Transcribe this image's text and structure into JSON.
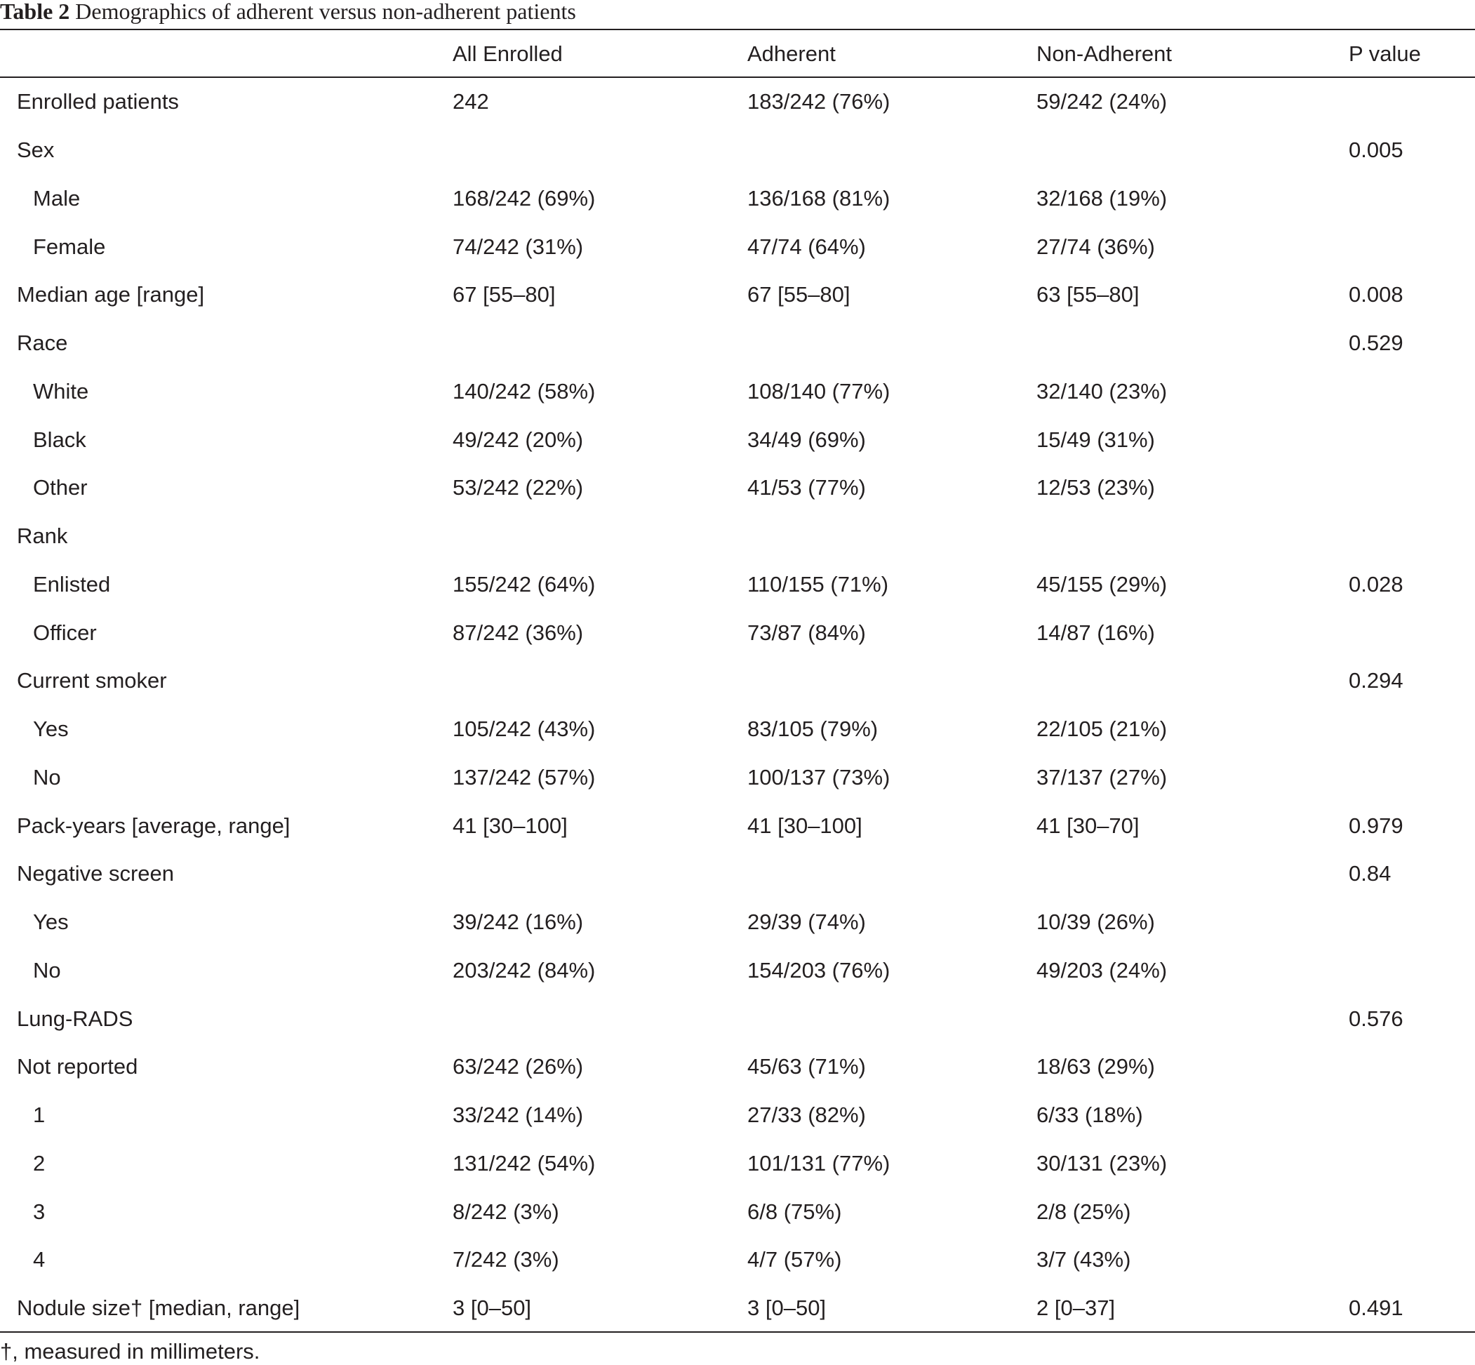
{
  "caption": {
    "number": "Table 2",
    "title": "Demographics of adherent versus non-adherent patients"
  },
  "columns": [
    "",
    "All Enrolled",
    "Adherent",
    "Non-Adherent",
    "P value"
  ],
  "rows": [
    {
      "label": "Enrolled patients",
      "indent": false,
      "all": "242",
      "adherent": "183/242 (76%)",
      "non_adherent": "59/242 (24%)",
      "p": ""
    },
    {
      "label": "Sex",
      "indent": false,
      "all": "",
      "adherent": "",
      "non_adherent": "",
      "p": "0.005"
    },
    {
      "label": "Male",
      "indent": true,
      "all": "168/242 (69%)",
      "adherent": "136/168 (81%)",
      "non_adherent": "32/168 (19%)",
      "p": ""
    },
    {
      "label": "Female",
      "indent": true,
      "all": "74/242 (31%)",
      "adherent": "47/74 (64%)",
      "non_adherent": "27/74 (36%)",
      "p": ""
    },
    {
      "label": "Median age [range]",
      "indent": false,
      "all": "67 [55–80]",
      "adherent": "67 [55–80]",
      "non_adherent": "63 [55–80]",
      "p": "0.008"
    },
    {
      "label": "Race",
      "indent": false,
      "all": "",
      "adherent": "",
      "non_adherent": "",
      "p": "0.529"
    },
    {
      "label": "White",
      "indent": true,
      "all": "140/242 (58%)",
      "adherent": "108/140 (77%)",
      "non_adherent": "32/140 (23%)",
      "p": ""
    },
    {
      "label": "Black",
      "indent": true,
      "all": "49/242 (20%)",
      "adherent": "34/49 (69%)",
      "non_adherent": "15/49 (31%)",
      "p": ""
    },
    {
      "label": "Other",
      "indent": true,
      "all": "53/242 (22%)",
      "adherent": "41/53 (77%)",
      "non_adherent": "12/53 (23%)",
      "p": ""
    },
    {
      "label": "Rank",
      "indent": false,
      "all": "",
      "adherent": "",
      "non_adherent": "",
      "p": ""
    },
    {
      "label": "Enlisted",
      "indent": true,
      "all": "155/242 (64%)",
      "adherent": "110/155 (71%)",
      "non_adherent": "45/155 (29%)",
      "p": "0.028"
    },
    {
      "label": "Officer",
      "indent": true,
      "all": "87/242 (36%)",
      "adherent": "73/87 (84%)",
      "non_adherent": "14/87 (16%)",
      "p": ""
    },
    {
      "label": "Current smoker",
      "indent": false,
      "all": "",
      "adherent": "",
      "non_adherent": "",
      "p": "0.294"
    },
    {
      "label": "Yes",
      "indent": true,
      "all": "105/242 (43%)",
      "adherent": "83/105 (79%)",
      "non_adherent": "22/105 (21%)",
      "p": ""
    },
    {
      "label": "No",
      "indent": true,
      "all": "137/242 (57%)",
      "adherent": "100/137 (73%)",
      "non_adherent": "37/137 (27%)",
      "p": ""
    },
    {
      "label": "Pack-years [average, range]",
      "indent": false,
      "all": "41 [30–100]",
      "adherent": "41 [30–100]",
      "non_adherent": "41 [30–70]",
      "p": "0.979"
    },
    {
      "label": "Negative screen",
      "indent": false,
      "all": "",
      "adherent": "",
      "non_adherent": "",
      "p": "0.84"
    },
    {
      "label": "Yes",
      "indent": true,
      "all": "39/242 (16%)",
      "adherent": "29/39 (74%)",
      "non_adherent": "10/39 (26%)",
      "p": ""
    },
    {
      "label": "No",
      "indent": true,
      "all": "203/242 (84%)",
      "adherent": "154/203 (76%)",
      "non_adherent": "49/203 (24%)",
      "p": ""
    },
    {
      "label": "Lung-RADS",
      "indent": false,
      "all": "",
      "adherent": "",
      "non_adherent": "",
      "p": "0.576"
    },
    {
      "label": "Not reported",
      "indent": false,
      "all": "63/242 (26%)",
      "adherent": "45/63 (71%)",
      "non_adherent": "18/63 (29%)",
      "p": ""
    },
    {
      "label": "1",
      "indent": true,
      "all": "33/242 (14%)",
      "adherent": "27/33 (82%)",
      "non_adherent": "6/33 (18%)",
      "p": ""
    },
    {
      "label": "2",
      "indent": true,
      "all": "131/242 (54%)",
      "adherent": "101/131 (77%)",
      "non_adherent": "30/131 (23%)",
      "p": ""
    },
    {
      "label": "3",
      "indent": true,
      "all": "8/242 (3%)",
      "adherent": "6/8 (75%)",
      "non_adherent": "2/8 (25%)",
      "p": ""
    },
    {
      "label": "4",
      "indent": true,
      "all": "7/242 (3%)",
      "adherent": "4/7 (57%)",
      "non_adherent": "3/7 (43%)",
      "p": ""
    },
    {
      "label": "Nodule size† [median, range]",
      "indent": false,
      "all": "3 [0–50]",
      "adherent": "3 [0–50]",
      "non_adherent": "2 [0–37]",
      "p": "0.491"
    }
  ],
  "footnote": "†, measured in millimeters."
}
